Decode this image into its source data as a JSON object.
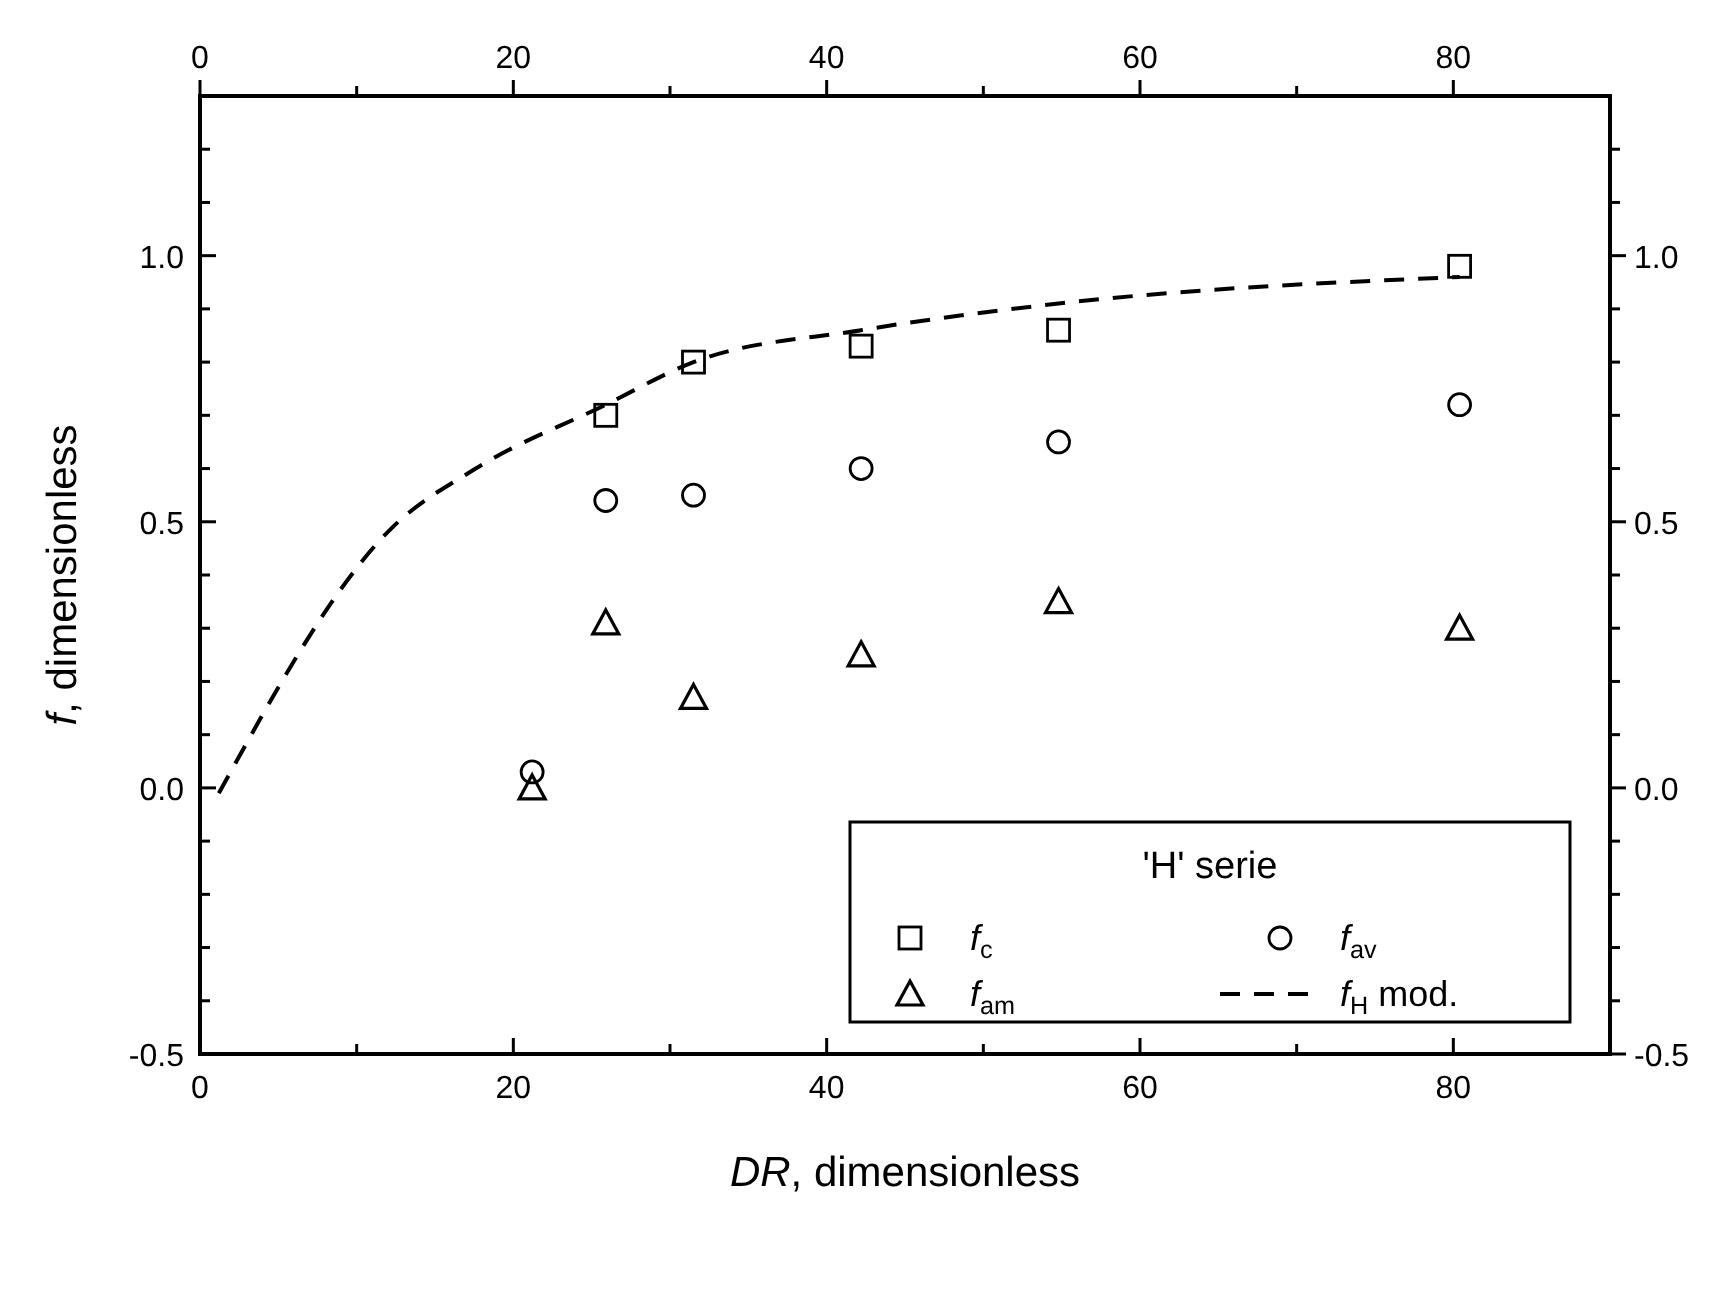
{
  "chart_data": {
    "type": "scatter",
    "xlabel": "DR, dimensionless",
    "ylabel": "f, dimensionless",
    "legend_title": "'H' serie",
    "legend": "bottom right",
    "grid": false,
    "xlim": [
      0,
      90
    ],
    "ylim": [
      -0.5,
      1.3
    ],
    "xticks": [
      0,
      {
        "value": 10,
        "label": null
      },
      20,
      {
        "value": 30,
        "label": null
      },
      40,
      {
        "value": 50,
        "label": null
      },
      60,
      {
        "value": 70,
        "label": null
      },
      80
    ],
    "x2lim": [
      0,
      90
    ],
    "x2ticks": [
      0,
      {
        "value": 10,
        "label": null
      },
      20,
      {
        "value": 30,
        "label": null
      },
      40,
      {
        "value": 50,
        "label": null
      },
      60,
      {
        "value": 70,
        "label": null
      },
      80
    ],
    "yticks": [
      -0.5,
      {
        "value": -0.4,
        "label": null
      },
      {
        "value": -0.3,
        "label": null
      },
      {
        "value": -0.2,
        "label": null
      },
      {
        "value": -0.1,
        "label": null
      },
      {
        "value": 0,
        "label": "0.0"
      },
      {
        "value": 0.1,
        "label": null
      },
      {
        "value": 0.2,
        "label": null
      },
      {
        "value": 0.3,
        "label": null
      },
      {
        "value": 0.4,
        "label": null
      },
      0.5,
      {
        "value": 0.6,
        "label": null
      },
      {
        "value": 0.7,
        "label": null
      },
      {
        "value": 0.8,
        "label": null
      },
      {
        "value": 0.9,
        "label": null
      },
      {
        "value": 1,
        "label": "1.0"
      },
      {
        "value": 1.1,
        "label": null
      },
      {
        "value": 1.2,
        "label": null
      }
    ],
    "y2lim": [
      -0.5,
      1.3
    ],
    "y2ticks": [
      -0.5,
      {
        "value": -0.4,
        "label": null
      },
      {
        "value": -0.3,
        "label": null
      },
      {
        "value": -0.2,
        "label": null
      },
      {
        "value": -0.1,
        "label": null
      },
      {
        "value": 0,
        "label": "0.0"
      },
      {
        "value": 0.1,
        "label": null
      },
      {
        "value": 0.2,
        "label": null
      },
      {
        "value": 0.3,
        "label": null
      },
      {
        "value": 0.4,
        "label": null
      },
      0.5,
      {
        "value": 0.6,
        "label": null
      },
      {
        "value": 0.7,
        "label": null
      },
      {
        "value": 0.8,
        "label": null
      },
      {
        "value": 0.9,
        "label": null
      },
      {
        "value": 1,
        "label": "1.0"
      },
      {
        "value": 1.1,
        "label": null
      },
      {
        "value": 1.2,
        "label": null
      }
    ],
    "series": [
      {
        "name": "f$_{c}$",
        "color": "#000000",
        "marker": "square",
        "x": [
          25.9,
          31.5,
          42.2,
          54.8,
          80.4
        ],
        "values": [
          0.7,
          0.8,
          0.83,
          0.86,
          0.98
        ]
      },
      {
        "name": "f$_{am}$",
        "color": "#000000",
        "marker": "triangle",
        "x": [
          21.2,
          25.9,
          31.5,
          42.2,
          54.8,
          80.4
        ],
        "values": [
          0.0,
          0.31,
          0.17,
          0.25,
          0.35,
          0.3
        ]
      },
      {
        "name": "f$_{av}$",
        "color": "#000000",
        "marker": "circle",
        "x": [
          21.2,
          25.9,
          31.5,
          42.2,
          54.8,
          80.4
        ],
        "values": [
          0.03,
          0.54,
          0.55,
          0.6,
          0.65,
          0.72
        ]
      },
      {
        "name": "f$_{H}$ mod.",
        "type": "line",
        "line_style": "dashed",
        "marker": "none",
        "color": "#000000",
        "x": [
          1.2,
          12.3,
          17.6,
          25.9,
          31.5,
          42.2,
          54.8,
          80.4
        ],
        "values": [
          -0.01,
          0.49,
          0.6,
          0.72,
          0.8,
          0.86,
          0.91,
          0.96
        ]
      }
    ]
  }
}
